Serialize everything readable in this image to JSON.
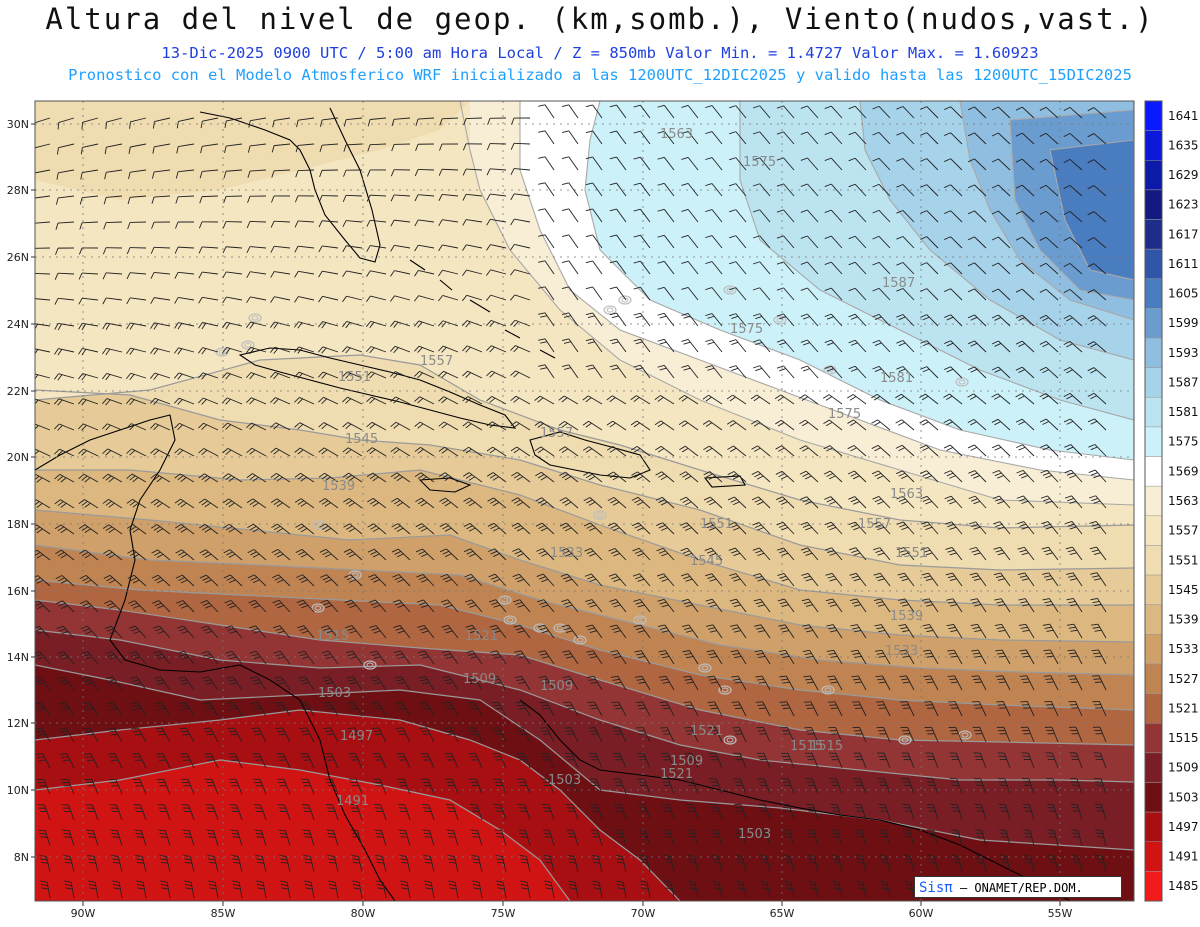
{
  "header": {
    "title": "Altura del nivel de geop. (km,somb.), Viento(nudos,vast.)",
    "subtitle": "13-Dic-2025  0900 UTC / 5:00 am Hora Local / Z = 850mb     Valor Min. = 1.4727  Valor Max. = 1.60923",
    "model_line": "Pronostico con el Modelo Atmosferico WRF inicializado a las 1200UTC_12DIC2025 y valido hasta las  1200UTC_15DIC2025"
  },
  "axes": {
    "lat_labels": [
      "30N",
      "28N",
      "26N",
      "24N",
      "22N",
      "20N",
      "18N",
      "16N",
      "14N",
      "12N",
      "10N",
      "8N"
    ],
    "lon_labels": [
      "90W",
      "85W",
      "80W",
      "75W",
      "70W",
      "65W",
      "60W",
      "55W"
    ]
  },
  "colorbar": {
    "levels": [
      "1641",
      "1635",
      "1629",
      "1623",
      "1617",
      "1611",
      "1605",
      "1599",
      "1593",
      "1587",
      "1581",
      "1575",
      "1569",
      "1563",
      "1557",
      "1551",
      "1545",
      "1539",
      "1533",
      "1527",
      "1521",
      "1515",
      "1509",
      "1503",
      "1497",
      "1491",
      "1485"
    ],
    "colors": [
      "#0a1aff",
      "#0b18d8",
      "#0c1aa8",
      "#121a80",
      "#1d2e8a",
      "#2f56a8",
      "#4a7cc0",
      "#6a9cd0",
      "#8fbee0",
      "#a6d2ea",
      "#bce4f0",
      "#ccf1f8",
      "#ffffff",
      "#f8eed6",
      "#f5e6c2",
      "#efdcb0",
      "#e6cb98",
      "#dcb880",
      "#cfa06a",
      "#c08453",
      "#b06640",
      "#943535",
      "#7a1e25",
      "#6e0f14",
      "#a80f12",
      "#d01414",
      "#f21a1a"
    ]
  },
  "field": {
    "min": "1.4727",
    "max": "1.60923",
    "bands_north_to_south": [
      "1569",
      "1563",
      "1557",
      "1551",
      "1545",
      "1539",
      "1533",
      "1527",
      "1521",
      "1515",
      "1509",
      "1503",
      "1497",
      "1491"
    ]
  },
  "contour_labels": [
    "1563",
    "1575",
    "1587",
    "1575",
    "1581",
    "1575",
    "1557",
    "1551",
    "1545",
    "1557",
    "1539",
    "1563",
    "1557",
    "1551",
    "1551",
    "1545",
    "1533",
    "1539",
    "1533",
    "1515",
    "1521",
    "1509",
    "1503",
    "1509",
    "1515",
    "1521",
    "1497",
    "1491",
    "1503",
    "1509",
    "1515",
    "1503",
    "1521"
  ],
  "credit": {
    "brand": "Sisπ",
    "text": " – ONAMET/REP.DOM."
  }
}
